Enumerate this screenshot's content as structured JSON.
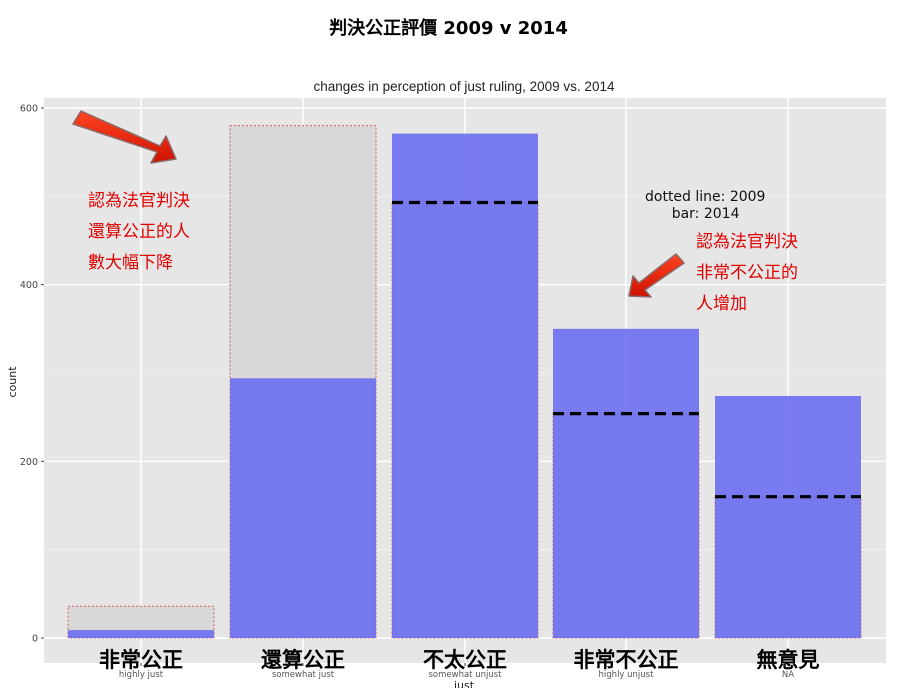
{
  "page_title": "判決公正評價  2009 v 2014",
  "chart_data": {
    "type": "bar",
    "title": "changes in perception of just ruling, 2009 vs. 2014",
    "xlabel": "just",
    "ylabel": "count",
    "ylim": [
      0,
      600
    ],
    "yticks": [
      0,
      200,
      400,
      600
    ],
    "grid": true,
    "categories": [
      "highly just",
      "somewhat just",
      "somewhat unjust",
      "highly unjust",
      "NA"
    ],
    "category_labels_zh": [
      "非常公正",
      "還算公正",
      "不太公正",
      "非常不公正",
      "無意見"
    ],
    "series": [
      {
        "name": "2014",
        "style": "bar",
        "color": "#6b6ef0",
        "values": [
          9,
          294,
          571,
          350,
          274
        ]
      },
      {
        "name": "2009",
        "style": "dotted outline",
        "color": "#e05a5a",
        "values": [
          36,
          580,
          493,
          254,
          160
        ]
      }
    ]
  },
  "annotations": {
    "left_note": "認為法官判決\n還算公正的人\n數大幅下降",
    "right_note": "認為法官判決\n非常不公正的\n人增加",
    "legend_note": "dotted line: 2009\n      bar: 2014"
  },
  "colors": {
    "panel_bg": "#e6e6e6",
    "grid": "#ffffff",
    "bar_2014": "#6b6ef0",
    "outline_2009": "#e05a5a",
    "arrow": "#ee2200",
    "annotation_red": "#e00000"
  }
}
